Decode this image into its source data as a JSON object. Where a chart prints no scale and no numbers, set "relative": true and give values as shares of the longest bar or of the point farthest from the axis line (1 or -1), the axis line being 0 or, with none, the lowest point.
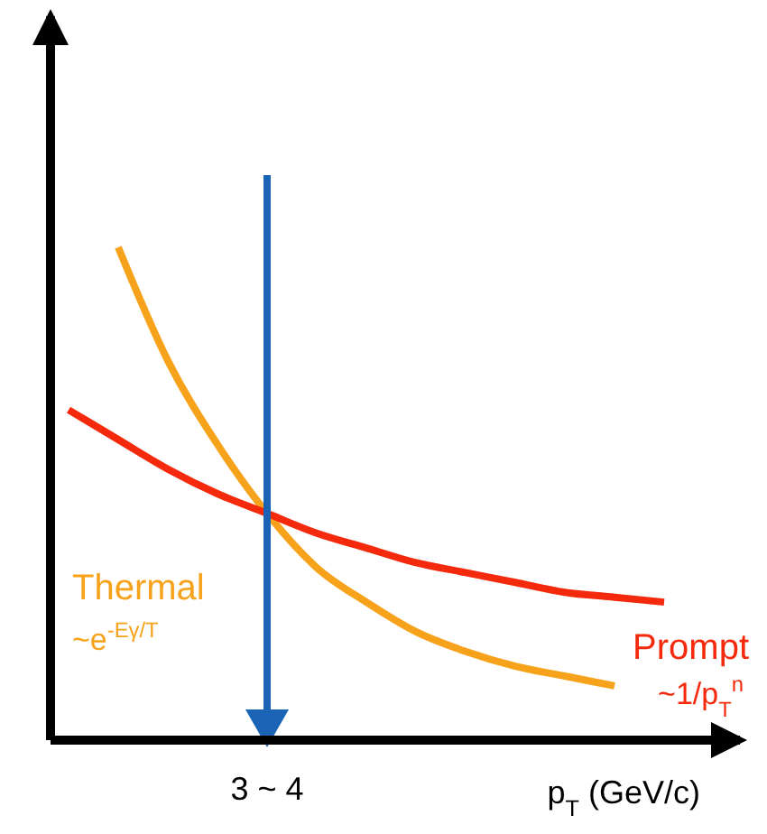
{
  "chart_data": {
    "type": "line",
    "relative": true,
    "xlabel": "p$_{T}$ (GeV/c)",
    "categories": [
      null,
      null,
      null,
      null,
      null,
      null,
      null,
      null,
      null,
      null,
      null,
      null,
      null,
      null
    ],
    "series": [
      {
        "name": "Thermal",
        "color": "#f7a21b",
        "values": [
          null,
          1,
          0.77,
          0.6,
          0.46,
          0.35,
          0.28,
          0.22,
          0.18,
          0.15,
          0.13,
          0.11,
          null,
          null
        ]
      },
      {
        "name": "Prompt",
        "color": "#f5290b",
        "values": [
          0.67,
          0.61,
          0.55,
          0.5,
          0.46,
          0.42,
          0.39,
          0.36,
          0.34,
          0.32,
          0.3,
          0.29,
          0.28,
          null
        ]
      }
    ],
    "annotations": [
      "3 ~ 4",
      "~e$^{-Eγ/T}$",
      "~1/p$_{T}$$^{n}$"
    ],
    "line_style": "solid"
  }
}
